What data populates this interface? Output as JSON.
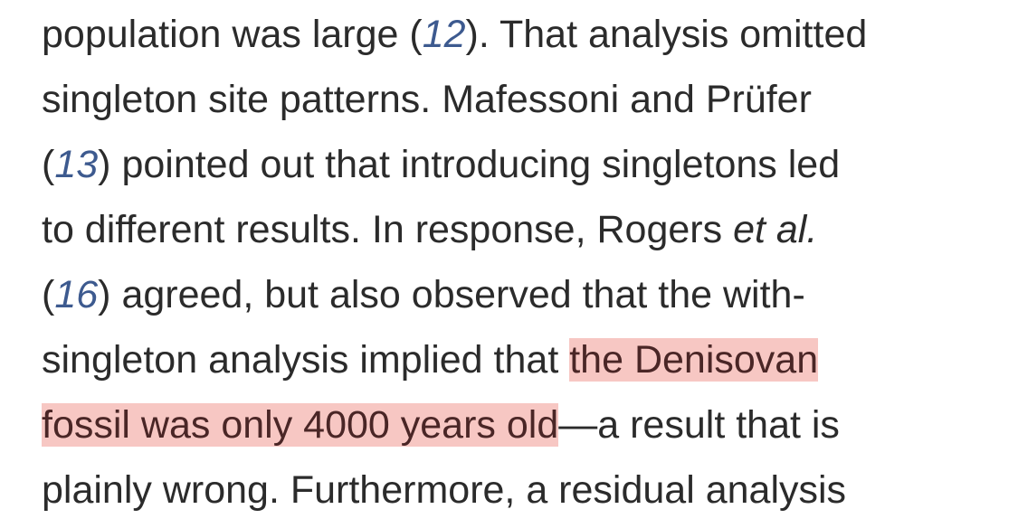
{
  "lines": [
    {
      "t1": "population was large (",
      "ref": "12",
      "t2": "). That analysis omitted"
    },
    {
      "t1": "singleton site patterns. Mafessoni and Prüfer"
    },
    {
      "t1": "(",
      "ref": "13",
      "t2": ") pointed out that introducing singletons led"
    },
    {
      "t1": "to different results. In response, Rogers ",
      "em": "et al."
    },
    {
      "t1": "(",
      "ref": "16",
      "t2": ") agreed, but also observed that the with-"
    },
    {
      "t1": "singleton analysis implied that ",
      "hl": "the Denisovan"
    },
    {
      "hl": "fossil was only 4000 years old",
      "t2": "—a result that is"
    },
    {
      "t1": "plainly wrong. Furthermore, a residual analysis"
    }
  ]
}
